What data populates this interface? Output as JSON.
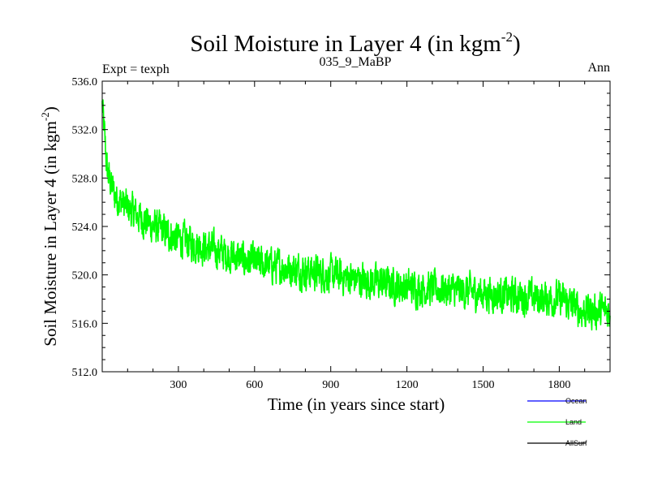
{
  "chart_data": {
    "type": "line",
    "title": "Soil Moisture in Layer 4 (in kgm",
    "title_superscript": "-2",
    "title_suffix": ")",
    "subtitle_left": "Expt = texph",
    "subtitle_center": "035_9_MaBP",
    "subtitle_right": "Ann",
    "xlabel": "Time (in years since start)",
    "ylabel": "Soil Moisture in Layer 4 (in kgm",
    "ylabel_superscript": "-2",
    "ylabel_suffix": ")",
    "xlim": [
      0,
      2000
    ],
    "ylim": [
      512.0,
      536.0
    ],
    "xticks": [
      300,
      600,
      900,
      1200,
      1500,
      1800
    ],
    "xtick_labels": [
      "300",
      "600",
      "900",
      "1200",
      "1500",
      "1800"
    ],
    "yticks": [
      512.0,
      516.0,
      520.0,
      524.0,
      528.0,
      532.0,
      536.0
    ],
    "ytick_labels": [
      "512.0",
      "516.0",
      "520.0",
      "524.0",
      "528.0",
      "532.0",
      "536.0"
    ],
    "grid": false,
    "legend": {
      "position": "bottom-right",
      "entries": [
        {
          "name": "Ocean",
          "color": "#0000ff"
        },
        {
          "name": "Land",
          "color": "#00ff00"
        },
        {
          "name": "AllSurf",
          "color": "#000000"
        }
      ]
    },
    "series": [
      {
        "name": "Land",
        "color": "#00ff00",
        "trend_x": [
          0,
          20,
          50,
          100,
          200,
          300,
          450,
          600,
          750,
          900,
          1050,
          1200,
          1350,
          1500,
          1650,
          1800,
          1900,
          2000
        ],
        "trend_y": [
          534.0,
          528.5,
          526.5,
          525.5,
          524.0,
          523.0,
          522.0,
          521.0,
          520.5,
          520.0,
          519.5,
          519.0,
          518.8,
          518.5,
          518.2,
          518.0,
          517.0,
          517.0
        ],
        "noise_amplitude": 2.2,
        "samples": 2000
      }
    ]
  }
}
